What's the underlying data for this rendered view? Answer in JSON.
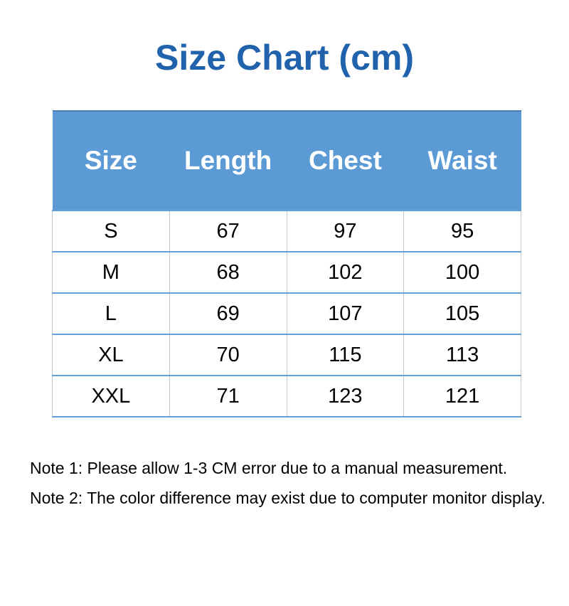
{
  "title": "Size Chart (cm)",
  "table": {
    "headers": [
      "Size",
      "Length",
      "Chest",
      "Waist"
    ],
    "rows": [
      [
        "S",
        "67",
        "97",
        "95"
      ],
      [
        "M",
        "68",
        "102",
        "100"
      ],
      [
        "L",
        "69",
        "107",
        "105"
      ],
      [
        "XL",
        "70",
        "115",
        "113"
      ],
      [
        "XXL",
        "71",
        "123",
        "121"
      ]
    ]
  },
  "notes": [
    "Note 1: Please allow 1-3 CM error due to a manual measurement.",
    "Note 2: The color difference may exist due to computer monitor display."
  ],
  "colors": {
    "title": "#2062ab",
    "header_bg": "#5b9ad5",
    "header_text": "#ffffff",
    "header_top_border": "#4a7fb5",
    "row_border": "#65a0d6",
    "col_border": "#bfc7d1",
    "body_text": "#000000"
  },
  "chart_data": {
    "type": "table",
    "title": "Size Chart (cm)",
    "units": "cm",
    "columns": [
      "Size",
      "Length",
      "Chest",
      "Waist"
    ],
    "rows": [
      {
        "size": "S",
        "length": 67,
        "chest": 97,
        "waist": 95
      },
      {
        "size": "M",
        "length": 68,
        "chest": 102,
        "waist": 100
      },
      {
        "size": "L",
        "length": 69,
        "chest": 107,
        "waist": 105
      },
      {
        "size": "XL",
        "length": 70,
        "chest": 115,
        "waist": 113
      },
      {
        "size": "XXL",
        "length": 71,
        "chest": 123,
        "waist": 121
      }
    ],
    "notes": [
      "Note 1: Please allow 1-3 CM error due to a manual measurement.",
      "Note 2: The color difference may exist due to computer monitor display."
    ]
  }
}
